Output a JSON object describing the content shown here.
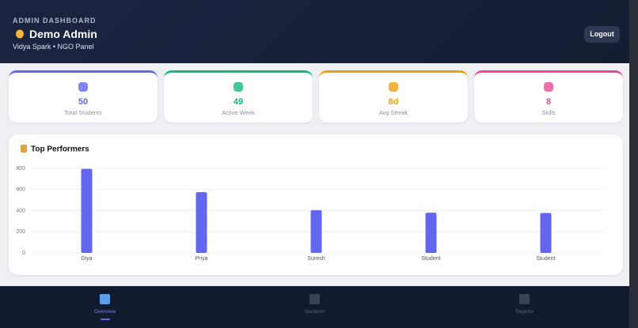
{
  "header": {
    "eyebrow": "ADMIN DASHBOARD",
    "title": "Demo Admin",
    "subtitle": "Vidya Spark • NGO Panel",
    "button": "Logout"
  },
  "stats": [
    {
      "value": 50,
      "label": "Total Students",
      "color": "#6366f1"
    },
    {
      "value": 49,
      "label": "Active Week",
      "color": "#10b981"
    },
    {
      "value": "8d",
      "label": "Avg Streak",
      "color": "#f59e0b"
    },
    {
      "value": 8,
      "label": "Skills",
      "color": "#ec4899"
    }
  ],
  "chart_data": {
    "type": "bar",
    "title": "Top Performers",
    "categories": [
      "Diya",
      "Priya",
      "Suresh",
      "Student",
      "Student"
    ],
    "values": [
      795,
      575,
      405,
      380,
      378
    ],
    "color": "#6366f1",
    "ylim": [
      0,
      800
    ],
    "yticks": [
      0,
      200,
      400,
      600,
      800
    ],
    "grid": true
  },
  "nav": [
    {
      "label": "Overview",
      "active": true
    },
    {
      "label": "Students",
      "active": false
    },
    {
      "label": "Reports",
      "active": false
    }
  ]
}
